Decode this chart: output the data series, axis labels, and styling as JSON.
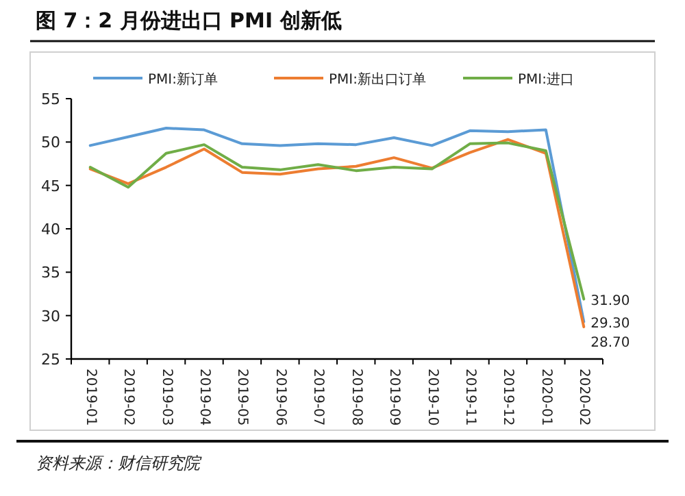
{
  "chart_data": {
    "type": "line",
    "title": "图 7：2 月份进出口 PMI 创新低",
    "categories": [
      "2019-01",
      "2019-02",
      "2019-03",
      "2019-04",
      "2019-05",
      "2019-06",
      "2019-07",
      "2019-08",
      "2019-09",
      "2019-10",
      "2019-11",
      "2019-12",
      "2020-01",
      "2020-02"
    ],
    "series": [
      {
        "name": "PMI:新订单",
        "color": "#5b9bd5",
        "values": [
          49.6,
          50.6,
          51.6,
          51.4,
          49.8,
          49.6,
          49.8,
          49.7,
          50.5,
          49.6,
          51.3,
          51.2,
          51.4,
          29.3
        ],
        "value_labels": [
          null,
          null,
          null,
          null,
          null,
          null,
          null,
          null,
          null,
          null,
          null,
          null,
          null,
          "29.30"
        ]
      },
      {
        "name": "PMI:新出口订单",
        "color": "#ed7d31",
        "values": [
          46.9,
          45.2,
          47.1,
          49.2,
          46.5,
          46.3,
          46.9,
          47.2,
          48.2,
          47.0,
          48.8,
          50.3,
          48.7,
          28.7
        ],
        "value_labels": [
          null,
          null,
          null,
          null,
          null,
          null,
          null,
          null,
          null,
          null,
          null,
          null,
          null,
          "28.70"
        ]
      },
      {
        "name": "PMI:进口",
        "color": "#70ad47",
        "values": [
          47.1,
          44.8,
          48.7,
          49.7,
          47.1,
          46.8,
          47.4,
          46.7,
          47.1,
          46.9,
          49.8,
          49.9,
          49.0,
          31.9
        ],
        "value_labels": [
          null,
          null,
          null,
          null,
          null,
          null,
          null,
          null,
          null,
          null,
          null,
          null,
          null,
          "31.90"
        ]
      }
    ],
    "ylim": [
      25,
      55
    ],
    "yticks": [
      25,
      30,
      35,
      40,
      45,
      50,
      55
    ],
    "grid": false,
    "legend": "top",
    "marker": "none",
    "line_style": "solid",
    "annotations": [
      "资料来源：财信研究院"
    ]
  }
}
